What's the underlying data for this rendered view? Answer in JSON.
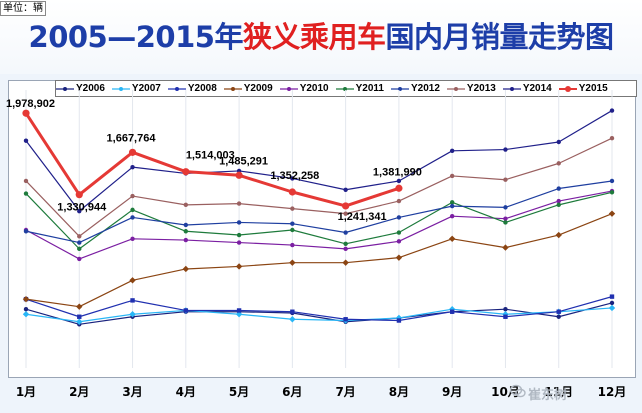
{
  "title": {
    "part1": "2005—2015年",
    "part2": "狭义乘用车",
    "part3": "国内月销量走势图"
  },
  "unit_label": "单位：辆",
  "watermark": "崔东树",
  "chart_data": {
    "type": "line",
    "title": "2005—2015年狭义乘用车国内月销量走势图",
    "ylabel": "单位：辆",
    "categories": [
      "1月",
      "2月",
      "3月",
      "4月",
      "5月",
      "6月",
      "7月",
      "8月",
      "9月",
      "10月",
      "11月",
      "12月"
    ],
    "ylim": [
      0,
      2100000
    ],
    "legend_position": "top",
    "series": [
      {
        "name": "Y2006",
        "color": "#1a237e",
        "marker": "dot",
        "values": [
          420000,
          300000,
          360000,
          400000,
          400000,
          390000,
          320000,
          350000,
          400000,
          420000,
          360000,
          470000
        ]
      },
      {
        "name": "Y2007",
        "color": "#29b6f6",
        "marker": "diamond",
        "values": [
          380000,
          320000,
          380000,
          410000,
          380000,
          340000,
          330000,
          350000,
          420000,
          380000,
          400000,
          430000
        ]
      },
      {
        "name": "Y2008",
        "color": "#2030b0",
        "marker": "square",
        "values": [
          500000,
          360000,
          490000,
          410000,
          410000,
          400000,
          340000,
          330000,
          400000,
          360000,
          400000,
          520000
        ]
      },
      {
        "name": "Y2009",
        "color": "#8b4513",
        "marker": "diamond",
        "values": [
          500000,
          440000,
          650000,
          740000,
          760000,
          790000,
          790000,
          830000,
          980000,
          910000,
          1010000,
          1180000
        ]
      },
      {
        "name": "Y2010",
        "color": "#7b1fa2",
        "marker": "dot",
        "values": [
          1050000,
          820000,
          980000,
          970000,
          950000,
          930000,
          900000,
          960000,
          1160000,
          1140000,
          1280000,
          1360000
        ]
      },
      {
        "name": "Y2011",
        "color": "#1e7b3c",
        "marker": "dot",
        "values": [
          1340000,
          900000,
          1210000,
          1040000,
          1010000,
          1050000,
          940000,
          1030000,
          1270000,
          1110000,
          1250000,
          1350000
        ]
      },
      {
        "name": "Y2012",
        "color": "#1f3fa0",
        "marker": "dot",
        "values": [
          1040000,
          950000,
          1150000,
          1090000,
          1110000,
          1100000,
          1030000,
          1150000,
          1240000,
          1230000,
          1380000,
          1440000
        ]
      },
      {
        "name": "Y2013",
        "color": "#9a6060",
        "marker": "dot",
        "values": [
          1440000,
          1000000,
          1320000,
          1250000,
          1260000,
          1220000,
          1180000,
          1280000,
          1480000,
          1450000,
          1580000,
          1780000
        ]
      },
      {
        "name": "Y2014",
        "color": "#20208a",
        "marker": "dot",
        "values": [
          1760000,
          1200000,
          1550000,
          1500000,
          1520000,
          1460000,
          1370000,
          1440000,
          1680000,
          1690000,
          1750000,
          2000000
        ]
      },
      {
        "name": "Y2015",
        "color": "#e53935",
        "marker": "dot",
        "width": 3,
        "values": [
          1978902,
          1330944,
          1667764,
          1514003,
          1485291,
          1352258,
          1241341,
          1381990,
          null,
          null,
          null,
          null
        ]
      }
    ],
    "annotations": [
      {
        "series": "Y2015",
        "index": 0,
        "text": "1,978,902"
      },
      {
        "series": "Y2015",
        "index": 1,
        "text": "1,330,944"
      },
      {
        "series": "Y2015",
        "index": 2,
        "text": "1,667,764"
      },
      {
        "series": "Y2015",
        "index": 3,
        "text": "1,514,003"
      },
      {
        "series": "Y2015",
        "index": 4,
        "text": "1,485,291"
      },
      {
        "series": "Y2015",
        "index": 5,
        "text": "1,352,258"
      },
      {
        "series": "Y2015",
        "index": 6,
        "text": "1,241,341"
      },
      {
        "series": "Y2015",
        "index": 7,
        "text": "1,381,990"
      }
    ]
  }
}
